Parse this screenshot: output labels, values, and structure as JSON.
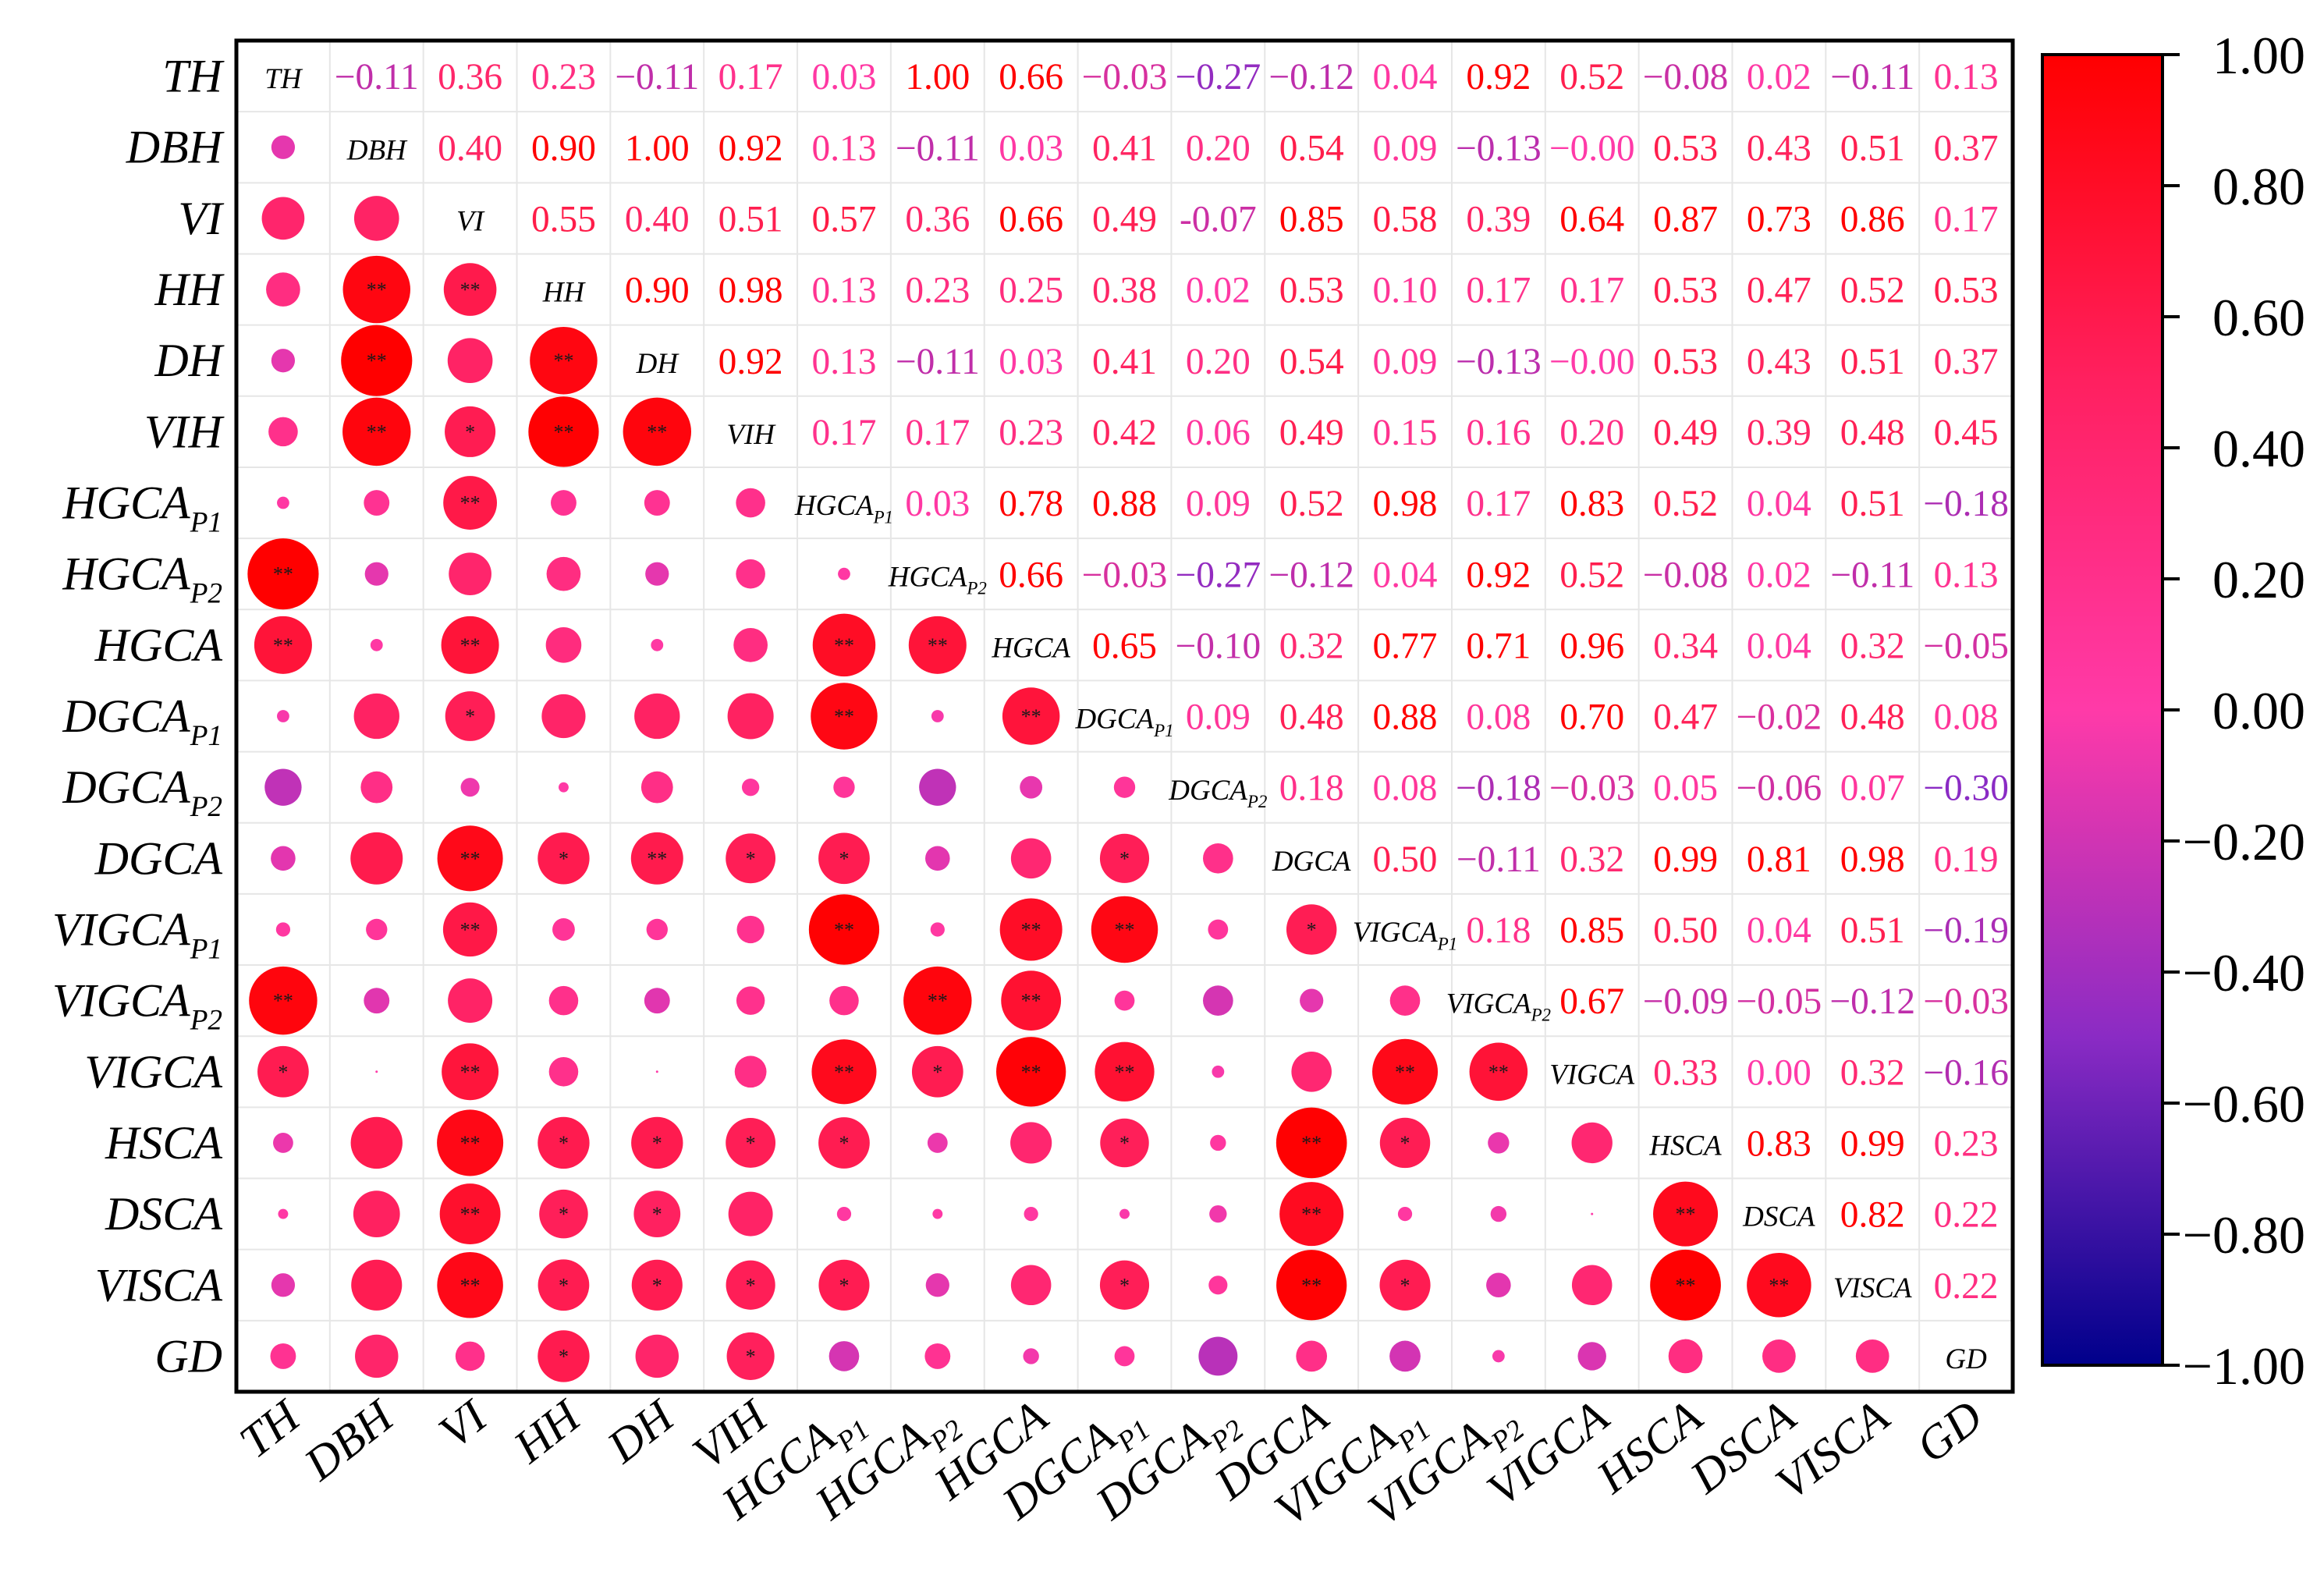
{
  "chart_data": {
    "type": "heatmap",
    "title": "",
    "variables": [
      {
        "name": "TH",
        "sub": ""
      },
      {
        "name": "DBH",
        "sub": ""
      },
      {
        "name": "VI",
        "sub": ""
      },
      {
        "name": "HH",
        "sub": ""
      },
      {
        "name": "DH",
        "sub": ""
      },
      {
        "name": "VIH",
        "sub": ""
      },
      {
        "name": "HGCA",
        "sub": "P1"
      },
      {
        "name": "HGCA",
        "sub": "P2"
      },
      {
        "name": "HGCA",
        "sub": ""
      },
      {
        "name": "DGCA",
        "sub": "P1"
      },
      {
        "name": "DGCA",
        "sub": "P2"
      },
      {
        "name": "DGCA",
        "sub": ""
      },
      {
        "name": "VIGCA",
        "sub": "P1"
      },
      {
        "name": "VIGCA",
        "sub": "P2"
      },
      {
        "name": "VIGCA",
        "sub": ""
      },
      {
        "name": "HSCA",
        "sub": ""
      },
      {
        "name": "DSCA",
        "sub": ""
      },
      {
        "name": "VISCA",
        "sub": ""
      },
      {
        "name": "GD",
        "sub": ""
      }
    ],
    "upper_values": [
      [
        null,
        -0.11,
        0.36,
        0.23,
        -0.11,
        0.17,
        0.03,
        1.0,
        0.66,
        -0.03,
        -0.27,
        -0.12,
        0.04,
        0.92,
        0.52,
        -0.08,
        0.02,
        -0.11,
        0.13
      ],
      [
        null,
        null,
        0.4,
        0.9,
        1.0,
        0.92,
        0.13,
        -0.11,
        0.03,
        0.41,
        0.2,
        0.54,
        0.09,
        -0.13,
        -0.0,
        0.53,
        0.43,
        0.51,
        0.37
      ],
      [
        null,
        null,
        null,
        0.55,
        0.4,
        0.51,
        0.57,
        0.36,
        0.66,
        0.49,
        -0.07,
        0.85,
        0.58,
        0.39,
        0.64,
        0.87,
        0.73,
        0.86,
        0.17
      ],
      [
        null,
        null,
        null,
        null,
        0.9,
        0.98,
        0.13,
        0.23,
        0.25,
        0.38,
        0.02,
        0.53,
        0.1,
        0.17,
        0.17,
        0.53,
        0.47,
        0.52,
        0.53
      ],
      [
        null,
        null,
        null,
        null,
        null,
        0.92,
        0.13,
        -0.11,
        0.03,
        0.41,
        0.2,
        0.54,
        0.09,
        -0.13,
        -0.0,
        0.53,
        0.43,
        0.51,
        0.37
      ],
      [
        null,
        null,
        null,
        null,
        null,
        null,
        0.17,
        0.17,
        0.23,
        0.42,
        0.06,
        0.49,
        0.15,
        0.16,
        0.2,
        0.49,
        0.39,
        0.48,
        0.45
      ],
      [
        null,
        null,
        null,
        null,
        null,
        null,
        null,
        0.03,
        0.78,
        0.88,
        0.09,
        0.52,
        0.98,
        0.17,
        0.83,
        0.52,
        0.04,
        0.51,
        -0.18
      ],
      [
        null,
        null,
        null,
        null,
        null,
        null,
        null,
        null,
        0.66,
        -0.03,
        -0.27,
        -0.12,
        0.04,
        0.92,
        0.52,
        -0.08,
        0.02,
        -0.11,
        0.13
      ],
      [
        null,
        null,
        null,
        null,
        null,
        null,
        null,
        null,
        null,
        0.65,
        -0.1,
        0.32,
        0.77,
        0.71,
        0.96,
        0.34,
        0.04,
        0.32,
        -0.05
      ],
      [
        null,
        null,
        null,
        null,
        null,
        null,
        null,
        null,
        null,
        null,
        0.09,
        0.48,
        0.88,
        0.08,
        0.7,
        0.47,
        -0.02,
        0.48,
        0.08
      ],
      [
        null,
        null,
        null,
        null,
        null,
        null,
        null,
        null,
        null,
        null,
        null,
        0.18,
        0.08,
        -0.18,
        -0.03,
        0.05,
        -0.06,
        0.07,
        -0.3
      ],
      [
        null,
        null,
        null,
        null,
        null,
        null,
        null,
        null,
        null,
        null,
        null,
        null,
        0.5,
        -0.11,
        0.32,
        0.99,
        0.81,
        0.98,
        0.19
      ],
      [
        null,
        null,
        null,
        null,
        null,
        null,
        null,
        null,
        null,
        null,
        null,
        null,
        null,
        0.18,
        0.85,
        0.5,
        0.04,
        0.51,
        -0.19
      ],
      [
        null,
        null,
        null,
        null,
        null,
        null,
        null,
        null,
        null,
        null,
        null,
        null,
        null,
        null,
        0.67,
        -0.09,
        -0.05,
        -0.12,
        -0.03
      ],
      [
        null,
        null,
        null,
        null,
        null,
        null,
        null,
        null,
        null,
        null,
        null,
        null,
        null,
        null,
        null,
        0.33,
        0.0,
        0.32,
        -0.16
      ],
      [
        null,
        null,
        null,
        null,
        null,
        null,
        null,
        null,
        null,
        null,
        null,
        null,
        null,
        null,
        null,
        null,
        0.83,
        0.99,
        0.23
      ],
      [
        null,
        null,
        null,
        null,
        null,
        null,
        null,
        null,
        null,
        null,
        null,
        null,
        null,
        null,
        null,
        null,
        null,
        0.82,
        0.22
      ],
      [
        null,
        null,
        null,
        null,
        null,
        null,
        null,
        null,
        null,
        null,
        null,
        null,
        null,
        null,
        null,
        null,
        null,
        null,
        0.22
      ]
    ],
    "value_labels": [
      [
        null,
        "−0.11",
        "0.36",
        "0.23",
        "−0.11",
        "0.17",
        "0.03",
        "1.00",
        "0.66",
        "−0.03",
        "−0.27",
        "−0.12",
        "0.04",
        "0.92",
        "0.52",
        "−0.08",
        "0.02",
        "−0.11",
        "0.13"
      ],
      [
        null,
        null,
        "0.40",
        "0.90",
        "1.00",
        "0.92",
        "0.13",
        "−0.11",
        "0.03",
        "0.41",
        "0.20",
        "0.54",
        "0.09",
        "−0.13",
        "−0.00",
        "0.53",
        "0.43",
        "0.51",
        "0.37"
      ],
      [
        null,
        null,
        null,
        "0.55",
        "0.40",
        "0.51",
        "0.57",
        "0.36",
        "0.66",
        "0.49",
        "-0.07",
        "0.85",
        "0.58",
        "0.39",
        "0.64",
        "0.87",
        "0.73",
        "0.86",
        "0.17"
      ],
      [
        null,
        null,
        null,
        null,
        "0.90",
        "0.98",
        "0.13",
        "0.23",
        "0.25",
        "0.38",
        "0.02",
        "0.53",
        "0.10",
        "0.17",
        "0.17",
        "0.53",
        "0.47",
        "0.52",
        "0.53"
      ],
      [
        null,
        null,
        null,
        null,
        null,
        "0.92",
        "0.13",
        "−0.11",
        "0.03",
        "0.41",
        "0.20",
        "0.54",
        "0.09",
        "−0.13",
        "−0.00",
        "0.53",
        "0.43",
        "0.51",
        "0.37"
      ],
      [
        null,
        null,
        null,
        null,
        null,
        null,
        "0.17",
        "0.17",
        "0.23",
        "0.42",
        "0.06",
        "0.49",
        "0.15",
        "0.16",
        "0.20",
        "0.49",
        "0.39",
        "0.48",
        "0.45"
      ],
      [
        null,
        null,
        null,
        null,
        null,
        null,
        null,
        "0.03",
        "0.78",
        "0.88",
        "0.09",
        "0.52",
        "0.98",
        "0.17",
        "0.83",
        "0.52",
        "0.04",
        "0.51",
        "−0.18"
      ],
      [
        null,
        null,
        null,
        null,
        null,
        null,
        null,
        null,
        "0.66",
        "−0.03",
        "−0.27",
        "−0.12",
        "0.04",
        "0.92",
        "0.52",
        "−0.08",
        "0.02",
        "−0.11",
        "0.13"
      ],
      [
        null,
        null,
        null,
        null,
        null,
        null,
        null,
        null,
        null,
        "0.65",
        "−0.10",
        "0.32",
        "0.77",
        "0.71",
        "0.96",
        "0.34",
        "0.04",
        "0.32",
        "−0.05"
      ],
      [
        null,
        null,
        null,
        null,
        null,
        null,
        null,
        null,
        null,
        null,
        "0.09",
        "0.48",
        "0.88",
        "0.08",
        "0.70",
        "0.47",
        "−0.02",
        "0.48",
        "0.08"
      ],
      [
        null,
        null,
        null,
        null,
        null,
        null,
        null,
        null,
        null,
        null,
        null,
        "0.18",
        "0.08",
        "−0.18",
        "−0.03",
        "0.05",
        "−0.06",
        "0.07",
        "−0.30"
      ],
      [
        null,
        null,
        null,
        null,
        null,
        null,
        null,
        null,
        null,
        null,
        null,
        null,
        "0.50",
        "−0.11",
        "0.32",
        "0.99",
        "0.81",
        "0.98",
        "0.19"
      ],
      [
        null,
        null,
        null,
        null,
        null,
        null,
        null,
        null,
        null,
        null,
        null,
        null,
        null,
        "0.18",
        "0.85",
        "0.50",
        "0.04",
        "0.51",
        "−0.19"
      ],
      [
        null,
        null,
        null,
        null,
        null,
        null,
        null,
        null,
        null,
        null,
        null,
        null,
        null,
        null,
        "0.67",
        "−0.09",
        "−0.05",
        "−0.12",
        "−0.03"
      ],
      [
        null,
        null,
        null,
        null,
        null,
        null,
        null,
        null,
        null,
        null,
        null,
        null,
        null,
        null,
        null,
        "0.33",
        "0.00",
        "0.32",
        "−0.16"
      ],
      [
        null,
        null,
        null,
        null,
        null,
        null,
        null,
        null,
        null,
        null,
        null,
        null,
        null,
        null,
        null,
        null,
        "0.83",
        "0.99",
        "0.23"
      ],
      [
        null,
        null,
        null,
        null,
        null,
        null,
        null,
        null,
        null,
        null,
        null,
        null,
        null,
        null,
        null,
        null,
        null,
        "0.82",
        "0.22"
      ],
      [
        null,
        null,
        null,
        null,
        null,
        null,
        null,
        null,
        null,
        null,
        null,
        null,
        null,
        null,
        null,
        null,
        null,
        null,
        "0.22"
      ]
    ],
    "significance": {
      "1,3": "**",
      "1,4": "**",
      "1,5": "**",
      "2,3": "**",
      "2,5": "*",
      "2,6": "**",
      "2,8": "**",
      "2,9": "*",
      "2,11": "**",
      "2,12": "**",
      "2,14": "**",
      "2,15": "**",
      "2,16": "**",
      "2,17": "**",
      "3,4": "**",
      "3,5": "**",
      "3,11": "*",
      "3,15": "*",
      "3,16": "*",
      "3,17": "*",
      "3,18": "*",
      "4,5": "**",
      "4,11": "**",
      "4,15": "*",
      "4,16": "*",
      "4,17": "*",
      "5,11": "*",
      "5,15": "*",
      "5,17": "*",
      "5,18": "*",
      "6,8": "**",
      "6,9": "**",
      "6,11": "*",
      "6,12": "**",
      "6,14": "**",
      "6,15": "*",
      "6,17": "*",
      "0,7": "**",
      "0,8": "**",
      "0,13": "**",
      "0,14": "*",
      "7,8": "**",
      "7,13": "**",
      "7,14": "*",
      "8,9": "**",
      "8,12": "**",
      "8,13": "**",
      "8,14": "**",
      "9,11": "*",
      "9,12": "**",
      "9,14": "**",
      "9,15": "*",
      "9,17": "*",
      "11,12": "*",
      "11,15": "**",
      "11,16": "**",
      "11,17": "**",
      "12,14": "**",
      "12,15": "*",
      "12,17": "*",
      "13,14": "**",
      "15,16": "**",
      "15,17": "**",
      "16,17": "**"
    },
    "colorbar": {
      "range": [
        -1.0,
        1.0
      ],
      "ticks": [
        "1.00",
        "0.80",
        "0.60",
        "0.40",
        "0.20",
        "0.00",
        "−0.20",
        "−0.40",
        "−0.60",
        "−0.80",
        "−1.00"
      ],
      "colors": {
        "low": "#00008b",
        "mid": "#ff3aa8",
        "high": "#ff0000"
      }
    },
    "xlabel": "",
    "ylabel": ""
  }
}
